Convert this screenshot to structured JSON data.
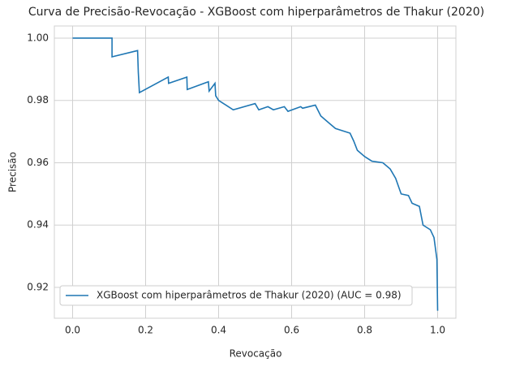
{
  "chart_data": {
    "type": "line",
    "title": "Curva de Precisão-Revocação - XGBoost com hiperparâmetros de Thakur (2020)",
    "x_label": "Revocação",
    "y_label": "Precisão",
    "xlim": [
      -0.05,
      1.05
    ],
    "ylim": [
      0.9101,
      1.0039
    ],
    "xticks": [
      {
        "value": 0,
        "label": "0.0"
      },
      0.2,
      0.4,
      0.6,
      0.8,
      {
        "value": 1,
        "label": "1.0"
      }
    ],
    "yticks": [
      0.92,
      0.94,
      0.96,
      0.98,
      {
        "value": 1,
        "label": "1.00"
      }
    ],
    "grid": true,
    "legend": "lower left",
    "x": [
      0,
      0.108,
      0.108,
      0.178,
      0.18,
      0.183,
      0.262,
      0.263,
      0.313,
      0.314,
      0.372,
      0.374,
      0.39,
      0.392,
      0.4,
      0.42,
      0.44,
      0.5,
      0.51,
      0.535,
      0.55,
      0.58,
      0.59,
      0.625,
      0.63,
      0.665,
      0.68,
      0.7,
      0.72,
      0.76,
      0.77,
      0.78,
      0.8,
      0.82,
      0.85,
      0.87,
      0.885,
      0.9,
      0.92,
      0.93,
      0.95,
      0.96,
      0.98,
      0.99,
      0.998,
      1.0
    ],
    "series": [
      {
        "name": "XGBoost com hiperparâmetros de Thakur (2020) (AUC = 0.98)",
        "color": "#1f77b4",
        "values": [
          1.0,
          1.0,
          0.994,
          0.996,
          0.989,
          0.9825,
          0.9875,
          0.9855,
          0.9875,
          0.9835,
          0.986,
          0.983,
          0.9855,
          0.9815,
          0.98,
          0.9785,
          0.977,
          0.979,
          0.977,
          0.978,
          0.977,
          0.978,
          0.9765,
          0.978,
          0.9775,
          0.9785,
          0.975,
          0.973,
          0.971,
          0.9695,
          0.967,
          0.964,
          0.962,
          0.9605,
          0.96,
          0.958,
          0.955,
          0.95,
          0.9495,
          0.947,
          0.946,
          0.94,
          0.9385,
          0.936,
          0.929,
          0.9125
        ]
      }
    ]
  }
}
